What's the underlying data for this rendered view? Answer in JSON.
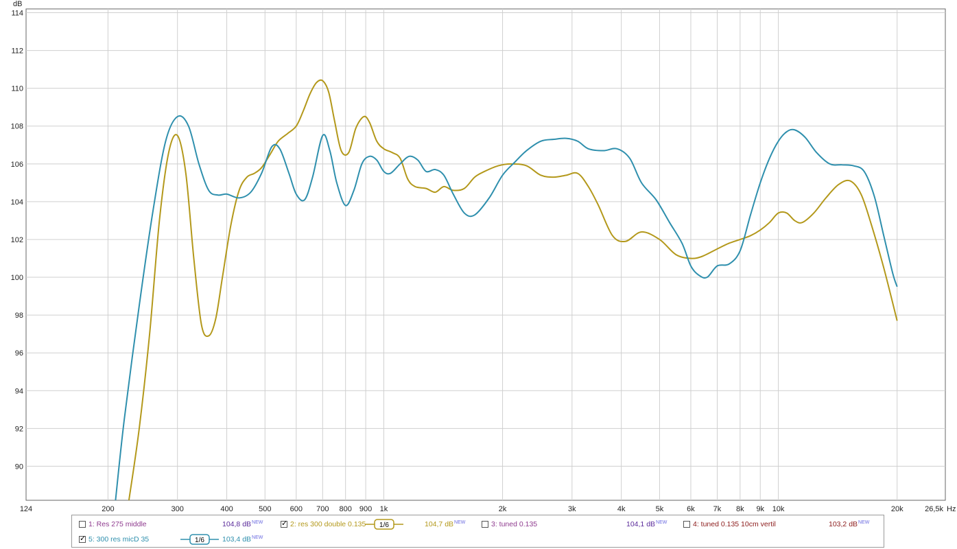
{
  "chart_data": {
    "type": "line",
    "xscale": "log",
    "xlim": [
      124,
      26500
    ],
    "ylim": [
      88.2,
      114.2
    ],
    "ylabel": "dB",
    "xlabel": "Hz",
    "yticks": [
      "114",
      "112",
      "110",
      "108",
      "106",
      "104",
      "102",
      "100",
      "98",
      "96",
      "94",
      "92",
      "90"
    ],
    "xticks": [
      {
        "v": 124,
        "label": "124"
      },
      {
        "v": 200,
        "label": "200"
      },
      {
        "v": 300,
        "label": "300"
      },
      {
        "v": 400,
        "label": "400"
      },
      {
        "v": 500,
        "label": "500"
      },
      {
        "v": 600,
        "label": "600"
      },
      {
        "v": 700,
        "label": "700"
      },
      {
        "v": 800,
        "label": "800"
      },
      {
        "v": 900,
        "label": "900"
      },
      {
        "v": 1000,
        "label": "1k"
      },
      {
        "v": 2000,
        "label": "2k"
      },
      {
        "v": 3000,
        "label": "3k"
      },
      {
        "v": 4000,
        "label": "4k"
      },
      {
        "v": 5000,
        "label": "5k"
      },
      {
        "v": 6000,
        "label": "6k"
      },
      {
        "v": 7000,
        "label": "7k"
      },
      {
        "v": 8000,
        "label": "8k"
      },
      {
        "v": 9000,
        "label": "9k"
      },
      {
        "v": 10000,
        "label": "10k"
      },
      {
        "v": 20000,
        "label": "20k"
      },
      {
        "v": 26500,
        "label": "26,5k"
      }
    ],
    "grid": true,
    "series": [
      {
        "name": "5: 300 res micD 35",
        "color": "#2e8fad",
        "x": [
          209,
          220,
          240,
          260,
          280,
          300,
          320,
          340,
          360,
          380,
          400,
          430,
          460,
          490,
          520,
          545,
          575,
          600,
          630,
          660,
          700,
          730,
          760,
          800,
          840,
          880,
          920,
          960,
          1000,
          1040,
          1100,
          1160,
          1220,
          1280,
          1350,
          1420,
          1500,
          1600,
          1700,
          1850,
          2000,
          2150,
          2300,
          2500,
          2700,
          2900,
          3100,
          3300,
          3600,
          3900,
          4200,
          4500,
          4900,
          5300,
          5700,
          6000,
          6300,
          6600,
          7000,
          7500,
          8000,
          8500,
          9000,
          9500,
          10000,
          10500,
          11000,
          11700,
          12500,
          13500,
          14500,
          15500,
          16500,
          17500,
          18500,
          19500,
          20000
        ],
        "y": [
          88.2,
          92.5,
          98.5,
          103.5,
          107.2,
          108.5,
          108.0,
          106.0,
          104.6,
          104.35,
          104.4,
          104.2,
          104.5,
          105.5,
          106.9,
          106.8,
          105.5,
          104.4,
          104.1,
          105.3,
          107.5,
          106.7,
          105.0,
          103.8,
          104.6,
          106.0,
          106.4,
          106.2,
          105.6,
          105.5,
          106.0,
          106.4,
          106.2,
          105.6,
          105.7,
          105.4,
          104.4,
          103.4,
          103.3,
          104.2,
          105.4,
          106.1,
          106.7,
          107.2,
          107.3,
          107.35,
          107.2,
          106.8,
          106.7,
          106.8,
          106.3,
          105.0,
          104.1,
          102.9,
          101.8,
          100.6,
          100.1,
          100.0,
          100.6,
          100.7,
          101.4,
          103.3,
          105.0,
          106.3,
          107.2,
          107.7,
          107.8,
          107.4,
          106.6,
          106.0,
          105.95,
          105.9,
          105.6,
          104.3,
          102.2,
          100.2,
          99.5
        ]
      },
      {
        "name": "2: res 300 double 0.135",
        "color": "#b3981a",
        "x": [
          226,
          240,
          255,
          270,
          285,
          300,
          315,
          330,
          345,
          360,
          375,
          390,
          410,
          430,
          450,
          470,
          490,
          515,
          540,
          570,
          600,
          625,
          650,
          675,
          700,
          725,
          750,
          780,
          815,
          850,
          890,
          920,
          960,
          1000,
          1050,
          1100,
          1150,
          1200,
          1280,
          1350,
          1420,
          1500,
          1600,
          1700,
          1800,
          1950,
          2100,
          2300,
          2500,
          2700,
          2900,
          3100,
          3300,
          3500,
          3800,
          4100,
          4500,
          5000,
          5500,
          6000,
          6400,
          7000,
          7500,
          8000,
          8500,
          9000,
          9500,
          10000,
          10500,
          11000,
          11500,
          12300,
          13200,
          14200,
          15200,
          16200,
          17200,
          18500,
          20000
        ],
        "y": [
          88.2,
          92.0,
          97.0,
          103.0,
          106.6,
          107.5,
          105.5,
          101.0,
          97.5,
          96.9,
          97.8,
          100.0,
          102.8,
          104.6,
          105.3,
          105.5,
          105.8,
          106.5,
          107.2,
          107.6,
          108.0,
          108.8,
          109.7,
          110.3,
          110.4,
          109.8,
          108.3,
          106.7,
          106.6,
          107.9,
          108.5,
          108.2,
          107.2,
          106.8,
          106.6,
          106.3,
          105.2,
          104.8,
          104.7,
          104.5,
          104.8,
          104.6,
          104.7,
          105.3,
          105.6,
          105.9,
          106.0,
          105.9,
          105.4,
          105.3,
          105.4,
          105.5,
          104.8,
          103.8,
          102.2,
          101.9,
          102.4,
          102.0,
          101.2,
          101.0,
          101.1,
          101.5,
          101.8,
          102.0,
          102.2,
          102.5,
          102.9,
          103.4,
          103.4,
          103.0,
          102.9,
          103.4,
          104.2,
          104.9,
          105.1,
          104.4,
          102.8,
          100.5,
          97.7
        ]
      }
    ],
    "legend": {
      "row1": [
        {
          "checked": false,
          "label": "1: Res 275 middle",
          "color": "#8e3a8e",
          "level": "104,8 dB",
          "level_color": "#5a2a9a",
          "tag": "NEW"
        },
        {
          "checked": true,
          "label": "2: res 300 double 0.135",
          "color": "#b3981a",
          "smoothing": "1/6",
          "level": "104,7 dB",
          "level_color": "#b3981a",
          "tag": "NEW"
        },
        {
          "checked": false,
          "label": "3: tuned 0.135",
          "color": "#8e3a8e",
          "level": "104,1 dB",
          "level_color": "#5a2a9a",
          "tag": "NEW"
        },
        {
          "checked": false,
          "label": "4: tuned 0.135 10cm  vertil",
          "color": "#8b1a1a",
          "level": "103,2 dB",
          "level_color": "#8b1a1a",
          "tag": "NEW"
        }
      ],
      "row2": [
        {
          "checked": true,
          "label": "5: 300 res micD 35",
          "color": "#2e8fad",
          "smoothing": "1/6",
          "level": "103,4 dB",
          "level_color": "#2e8fad",
          "tag": "NEW"
        }
      ]
    }
  }
}
